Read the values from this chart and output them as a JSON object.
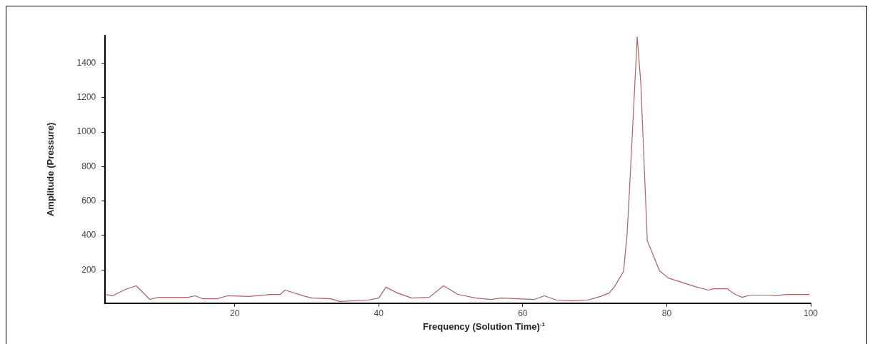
{
  "chart_data": {
    "type": "line",
    "xlabel": "Frequency (Solution Time)$^{-1}$",
    "ylabel": "Amplitude (Pressure)",
    "xlim": [
      2,
      100
    ],
    "xticks": [
      20,
      40,
      60,
      80,
      100
    ],
    "ylim": [
      8,
      1560
    ],
    "yticks": [
      200,
      400,
      600,
      800,
      1000,
      1200,
      1400
    ],
    "marker": "none",
    "legend": false,
    "series": [
      {
        "color": "#b06060",
        "x": [
          2,
          3,
          4.8,
          6.3,
          8.2,
          9.4,
          13.5,
          14.5,
          15.5,
          17.5,
          19,
          22,
          25,
          26.3,
          27,
          29.8,
          30.8,
          33.3,
          34.6,
          38.5,
          40,
          41,
          42.6,
          44.6,
          47,
          49,
          51,
          53.5,
          55.6,
          57,
          61.6,
          63,
          64.7,
          66.8,
          69,
          70.8,
          72,
          72.7,
          74,
          74.5,
          75,
          75.9,
          76.4,
          77.3,
          79,
          80.2,
          81.7,
          84.2,
          85.8,
          86.4,
          88.4,
          89.5,
          90.5,
          91.5,
          94.5,
          95,
          96.6,
          99.8
        ],
        "values": [
          58,
          50,
          87,
          108,
          29,
          41,
          41,
          50,
          33,
          33,
          50,
          46,
          58,
          58,
          83,
          46,
          37,
          33,
          17,
          25,
          37,
          100,
          66,
          37,
          41,
          108,
          58,
          37,
          29,
          37,
          29,
          50,
          25,
          21,
          25,
          46,
          66,
          100,
          191,
          411,
          805,
          1553,
          1283,
          370,
          195,
          154,
          133,
          100,
          83,
          91,
          91,
          58,
          41,
          54,
          54,
          50,
          58,
          58
        ]
      }
    ]
  }
}
